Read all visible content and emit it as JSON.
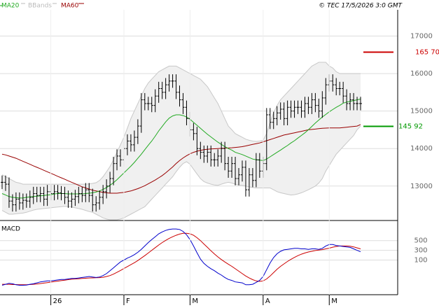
{
  "header": {
    "legend": [
      {
        "label": "MA20",
        "color": "#22aa22"
      },
      {
        "label": "BBands",
        "color": "#bbbbbb"
      },
      {
        "label": "MA60",
        "color": "#990000"
      }
    ],
    "copyright": "© TEC 17/5/2026 3:0 GMT"
  },
  "colors": {
    "price": "#000000",
    "ma20": "#22aa22",
    "bbands": "#c8c8c8",
    "ma60": "#990000",
    "macd": "#0000cc",
    "signal": "#cc0000",
    "grid": "#dddddd",
    "axis": "#000000",
    "band_fill": "#f0f0f0"
  },
  "chart_data": [
    {
      "type": "ohlc",
      "title": "",
      "price_axis": {
        "ticks": [
          "13000",
          "14000",
          "15000",
          "16000",
          "17000"
        ],
        "ylim": [
          12100,
          17700
        ]
      },
      "x_axis": {
        "ticks": [
          {
            "label": "26",
            "index": 14
          },
          {
            "label": "F",
            "index": 35
          },
          {
            "label": "M",
            "index": 54
          },
          {
            "label": "A",
            "index": 75
          },
          {
            "label": "M",
            "index": 94
          }
        ],
        "count": 104
      },
      "markers": [
        {
          "label": "16570",
          "display": "165 70",
          "value": 16570,
          "color": "#cc0000"
        },
        {
          "label": "14592",
          "display": "145 92",
          "value": 14592,
          "color": "#009900"
        }
      ],
      "series": [
        {
          "name": "Price",
          "close": [
            13100,
            13050,
            12600,
            12500,
            12650,
            12550,
            12620,
            12600,
            12700,
            12800,
            12750,
            12800,
            12650,
            12850,
            12800,
            12850,
            12820,
            12800,
            12700,
            12600,
            12650,
            12720,
            12800,
            12750,
            12900,
            12750,
            12500,
            12550,
            12700,
            12850,
            13000,
            13200,
            13600,
            13800,
            13700,
            14000,
            14200,
            14100,
            14300,
            14600,
            15300,
            15200,
            15200,
            15150,
            15400,
            15600,
            15500,
            15700,
            15800,
            15800,
            15500,
            15300,
            15100,
            14800,
            14500,
            14400,
            14000,
            13900,
            13800,
            13900,
            13700,
            13700,
            13800,
            14000,
            13600,
            13400,
            13600,
            13200,
            13300,
            13500,
            12900,
            13300,
            13150,
            13700,
            13400,
            13600,
            14900,
            14700,
            14800,
            14950,
            15050,
            14800,
            15100,
            15000,
            15100,
            15100,
            15000,
            15200,
            15100,
            15300,
            15150,
            15000,
            15350,
            15700,
            15800,
            15700,
            15600,
            15600,
            15400,
            15200,
            15300,
            15200,
            15200,
            15200
          ]
        },
        {
          "name": "MA20",
          "values": [
            12800,
            12760,
            12720,
            12700,
            12690,
            12680,
            12680,
            12700,
            12710,
            12720,
            12730,
            12740,
            12750,
            12760,
            12770,
            12790,
            12800,
            12800,
            12800,
            12790,
            12790,
            12790,
            12790,
            12790,
            12800,
            12810,
            12820,
            12840,
            12870,
            12910,
            12960,
            13020,
            13090,
            13170,
            13260,
            13350,
            13440,
            13530,
            13630,
            13740,
            13850,
            13970,
            14090,
            14200,
            14330,
            14470,
            14590,
            14710,
            14810,
            14870,
            14900,
            14900,
            14880,
            14840,
            14780,
            14700,
            14620,
            14540,
            14460,
            14380,
            14310,
            14240,
            14170,
            14110,
            14050,
            14000,
            13960,
            13900,
            13870,
            13840,
            13800,
            13760,
            13720,
            13700,
            13690,
            13680,
            13720,
            13780,
            13840,
            13900,
            13960,
            14020,
            14080,
            14150,
            14210,
            14280,
            14350,
            14420,
            14500,
            14590,
            14680,
            14760,
            14840,
            14910,
            14980,
            15040,
            15100,
            15150,
            15210,
            15240,
            15260,
            15280,
            15300,
            15320
          ]
        },
        {
          "name": "MA60",
          "values": [
            13850,
            13830,
            13800,
            13770,
            13740,
            13700,
            13660,
            13620,
            13580,
            13540,
            13500,
            13460,
            13420,
            13380,
            13340,
            13300,
            13260,
            13220,
            13180,
            13140,
            13100,
            13060,
            13020,
            12980,
            12950,
            12920,
            12890,
            12870,
            12850,
            12830,
            12820,
            12810,
            12810,
            12810,
            12820,
            12830,
            12850,
            12870,
            12900,
            12930,
            12970,
            13010,
            13060,
            13110,
            13160,
            13220,
            13280,
            13350,
            13430,
            13510,
            13600,
            13680,
            13750,
            13810,
            13860,
            13900,
            13930,
            13950,
            13970,
            13980,
            13990,
            13995,
            14000,
            14005,
            14010,
            14015,
            14020,
            14030,
            14040,
            14050,
            14070,
            14090,
            14110,
            14130,
            14150,
            14180,
            14210,
            14240,
            14270,
            14300,
            14330,
            14360,
            14380,
            14400,
            14420,
            14440,
            14460,
            14480,
            14500,
            14510,
            14520,
            14530,
            14540,
            14545,
            14550,
            14550,
            14550,
            14550,
            14560,
            14570,
            14580,
            14590,
            14600,
            14640
          ]
        },
        {
          "name": "BBands upper",
          "values": [
            13300,
            13250,
            13200,
            13150,
            13100,
            13080,
            13050,
            13050,
            13050,
            13050,
            13050,
            13050,
            13050,
            13050,
            13050,
            13050,
            13050,
            13050,
            13050,
            13050,
            13050,
            13050,
            13050,
            13050,
            13050,
            13060,
            13070,
            13090,
            13150,
            13250,
            13380,
            13520,
            13700,
            13900,
            14100,
            14300,
            14550,
            14800,
            15000,
            15200,
            15400,
            15600,
            15750,
            15850,
            15950,
            16050,
            16100,
            16150,
            16200,
            16200,
            16200,
            16150,
            16100,
            16050,
            16000,
            15950,
            15900,
            15850,
            15750,
            15650,
            15500,
            15350,
            15200,
            15000,
            14800,
            14600,
            14500,
            14400,
            14350,
            14300,
            14250,
            14220,
            14200,
            14190,
            14200,
            14220,
            14400,
            14700,
            14950,
            15150,
            15300,
            15400,
            15500,
            15600,
            15700,
            15800,
            15900,
            16000,
            16100,
            16200,
            16250,
            16300,
            16300,
            16300,
            16200,
            16150,
            16050,
            16000,
            16000,
            16000,
            16000,
            16000,
            16000,
            16000
          ]
        },
        {
          "name": "BBands lower",
          "values": [
            12350,
            12300,
            12250,
            12250,
            12260,
            12270,
            12280,
            12300,
            12330,
            12360,
            12380,
            12390,
            12400,
            12410,
            12420,
            12430,
            12440,
            12450,
            12460,
            12450,
            12440,
            12420,
            12400,
            12380,
            12350,
            12320,
            12300,
            12250,
            12200,
            12150,
            12120,
            12100,
            12100,
            12100,
            12120,
            12150,
            12200,
            12250,
            12300,
            12350,
            12400,
            12450,
            12550,
            12650,
            12750,
            12850,
            12950,
            13050,
            13150,
            13250,
            13380,
            13500,
            13600,
            13650,
            13580,
            13450,
            13320,
            13200,
            13120,
            13080,
            13050,
            13030,
            13020,
            13050,
            13080,
            13100,
            13080,
            13050,
            13030,
            13020,
            13000,
            12980,
            12960,
            12950,
            12950,
            12950,
            12950,
            12950,
            12900,
            12850,
            12820,
            12800,
            12780,
            12760,
            12770,
            12790,
            12820,
            12860,
            12900,
            12950,
            13000,
            13080,
            13200,
            13400,
            13550,
            13700,
            13850,
            13950,
            14050,
            14150,
            14250,
            14350,
            14500,
            14600
          ]
        }
      ]
    },
    {
      "type": "line",
      "title": "MACD",
      "y_ticks": [
        "100",
        "300",
        "500"
      ],
      "ylim": [
        -600,
        900
      ],
      "series": [
        {
          "name": "MACD",
          "values": [
            -420,
            -400,
            -380,
            -390,
            -410,
            -420,
            -420,
            -415,
            -400,
            -390,
            -370,
            -350,
            -340,
            -330,
            -330,
            -320,
            -310,
            -300,
            -300,
            -290,
            -280,
            -280,
            -270,
            -260,
            -250,
            -240,
            -250,
            -260,
            -250,
            -220,
            -180,
            -120,
            -60,
            0,
            60,
            100,
            140,
            170,
            210,
            260,
            320,
            390,
            460,
            520,
            580,
            640,
            680,
            710,
            730,
            740,
            740,
            730,
            690,
            620,
            520,
            390,
            250,
            120,
            30,
            -30,
            -80,
            -120,
            -170,
            -210,
            -260,
            -300,
            -320,
            -350,
            -360,
            -370,
            -410,
            -410,
            -400,
            -360,
            -320,
            -240,
            -100,
            40,
            150,
            230,
            280,
            310,
            320,
            330,
            340,
            340,
            330,
            330,
            320,
            330,
            330,
            320,
            340,
            390,
            420,
            420,
            400,
            390,
            380,
            370,
            360,
            330,
            300,
            270
          ]
        },
        {
          "name": "Signal",
          "values": [
            -400,
            -400,
            -400,
            -405,
            -405,
            -410,
            -410,
            -410,
            -405,
            -400,
            -395,
            -385,
            -375,
            -365,
            -355,
            -345,
            -335,
            -325,
            -315,
            -305,
            -295,
            -290,
            -285,
            -280,
            -275,
            -270,
            -268,
            -266,
            -263,
            -255,
            -240,
            -220,
            -190,
            -155,
            -115,
            -75,
            -35,
            5,
            45,
            90,
            140,
            190,
            245,
            300,
            355,
            410,
            460,
            505,
            545,
            580,
            610,
            635,
            650,
            650,
            640,
            610,
            560,
            500,
            430,
            360,
            290,
            225,
            165,
            110,
            60,
            15,
            -30,
            -80,
            -130,
            -180,
            -230,
            -270,
            -305,
            -330,
            -340,
            -330,
            -290,
            -230,
            -160,
            -90,
            -30,
            20,
            70,
            115,
            155,
            190,
            220,
            245,
            265,
            280,
            295,
            305,
            315,
            330,
            345,
            365,
            380,
            390,
            390,
            390,
            385,
            370,
            350,
            330
          ]
        }
      ]
    }
  ]
}
